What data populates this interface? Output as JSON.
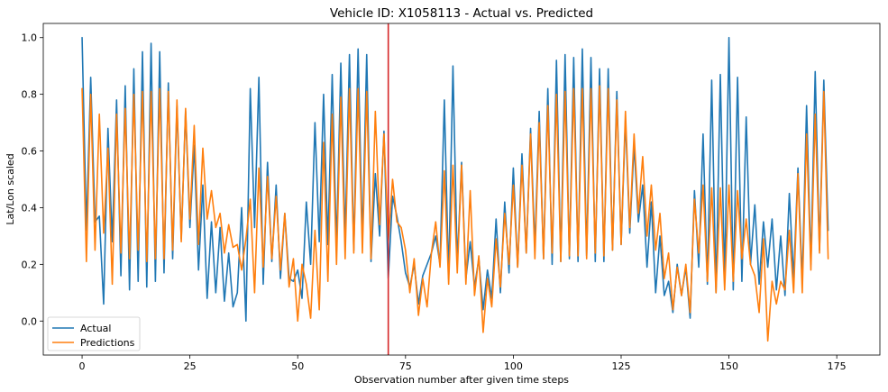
{
  "chart_data": {
    "type": "line",
    "title": "Vehicle ID: X1058113 - Actual vs. Predicted",
    "xlabel": "Observation number after given time steps",
    "ylabel": "Lat/Lon scaled",
    "xlim": [
      -9,
      185
    ],
    "ylim": [
      -0.12,
      1.05
    ],
    "x_ticks": [
      0,
      25,
      50,
      75,
      100,
      125,
      150,
      175
    ],
    "y_ticks": [
      0.0,
      0.2,
      0.4,
      0.6,
      0.8,
      1.0
    ],
    "grid": false,
    "legend_position": "lower-left",
    "vline": {
      "x": 71,
      "color": "#d62728"
    },
    "series": [
      {
        "name": "Actual",
        "color": "#1f77b4",
        "values": [
          1.0,
          0.32,
          0.86,
          0.35,
          0.37,
          0.06,
          0.68,
          0.28,
          0.78,
          0.16,
          0.83,
          0.11,
          0.89,
          0.14,
          0.95,
          0.12,
          0.98,
          0.14,
          0.95,
          0.17,
          0.84,
          0.22,
          0.76,
          0.29,
          0.74,
          0.33,
          0.62,
          0.18,
          0.48,
          0.08,
          0.35,
          0.1,
          0.33,
          0.07,
          0.24,
          0.05,
          0.1,
          0.4,
          0.0,
          0.82,
          0.33,
          0.86,
          0.13,
          0.56,
          0.21,
          0.48,
          0.15,
          0.38,
          0.15,
          0.14,
          0.18,
          0.08,
          0.42,
          0.2,
          0.7,
          0.28,
          0.8,
          0.27,
          0.87,
          0.26,
          0.91,
          0.29,
          0.94,
          0.25,
          0.96,
          0.28,
          0.94,
          0.21,
          0.52,
          0.3,
          0.67,
          0.15,
          0.44,
          0.37,
          0.28,
          0.17,
          0.12,
          0.2,
          0.06,
          0.16,
          0.2,
          0.24,
          0.3,
          0.2,
          0.78,
          0.15,
          0.9,
          0.2,
          0.56,
          0.15,
          0.28,
          0.12,
          0.22,
          0.04,
          0.18,
          0.08,
          0.36,
          0.1,
          0.42,
          0.17,
          0.54,
          0.19,
          0.59,
          0.24,
          0.68,
          0.26,
          0.74,
          0.22,
          0.82,
          0.2,
          0.92,
          0.21,
          0.94,
          0.22,
          0.93,
          0.21,
          0.96,
          0.23,
          0.93,
          0.21,
          0.89,
          0.21,
          0.89,
          0.25,
          0.81,
          0.27,
          0.71,
          0.31,
          0.62,
          0.35,
          0.48,
          0.19,
          0.42,
          0.1,
          0.3,
          0.09,
          0.14,
          0.03,
          0.2,
          0.09,
          0.19,
          0.01,
          0.46,
          0.19,
          0.66,
          0.13,
          0.85,
          0.1,
          0.87,
          0.14,
          1.0,
          0.11,
          0.86,
          0.14,
          0.72,
          0.2,
          0.41,
          0.13,
          0.35,
          0.19,
          0.36,
          0.11,
          0.3,
          0.09,
          0.45,
          0.15,
          0.54,
          0.14,
          0.76,
          0.2,
          0.88,
          0.25,
          0.85,
          0.32
        ]
      },
      {
        "name": "Predictions",
        "color": "#ff7f0e",
        "values": [
          0.82,
          0.21,
          0.8,
          0.25,
          0.73,
          0.31,
          0.61,
          0.13,
          0.73,
          0.24,
          0.75,
          0.22,
          0.8,
          0.25,
          0.81,
          0.21,
          0.81,
          0.22,
          0.82,
          0.22,
          0.81,
          0.25,
          0.78,
          0.28,
          0.75,
          0.36,
          0.69,
          0.27,
          0.61,
          0.36,
          0.46,
          0.33,
          0.38,
          0.24,
          0.34,
          0.26,
          0.27,
          0.18,
          0.29,
          0.43,
          0.1,
          0.54,
          0.19,
          0.51,
          0.22,
          0.44,
          0.18,
          0.38,
          0.12,
          0.22,
          0.0,
          0.2,
          0.13,
          0.01,
          0.32,
          0.04,
          0.63,
          0.14,
          0.73,
          0.2,
          0.79,
          0.22,
          0.82,
          0.24,
          0.82,
          0.24,
          0.81,
          0.22,
          0.74,
          0.34,
          0.66,
          0.28,
          0.5,
          0.35,
          0.33,
          0.25,
          0.1,
          0.22,
          0.02,
          0.15,
          0.05,
          0.24,
          0.35,
          0.19,
          0.53,
          0.13,
          0.55,
          0.17,
          0.55,
          0.13,
          0.46,
          0.09,
          0.23,
          -0.04,
          0.15,
          0.05,
          0.29,
          0.12,
          0.38,
          0.2,
          0.48,
          0.19,
          0.55,
          0.24,
          0.66,
          0.22,
          0.7,
          0.22,
          0.76,
          0.24,
          0.8,
          0.21,
          0.81,
          0.23,
          0.82,
          0.23,
          0.82,
          0.22,
          0.82,
          0.24,
          0.83,
          0.23,
          0.82,
          0.25,
          0.78,
          0.27,
          0.74,
          0.33,
          0.66,
          0.38,
          0.58,
          0.3,
          0.48,
          0.25,
          0.38,
          0.15,
          0.24,
          0.04,
          0.19,
          0.09,
          0.2,
          0.03,
          0.43,
          0.24,
          0.48,
          0.14,
          0.47,
          0.1,
          0.47,
          0.11,
          0.48,
          0.14,
          0.46,
          0.22,
          0.36,
          0.2,
          0.16,
          0.03,
          0.29,
          -0.07,
          0.14,
          0.06,
          0.14,
          0.11,
          0.32,
          0.1,
          0.52,
          0.1,
          0.66,
          0.18,
          0.73,
          0.24,
          0.81,
          0.22
        ]
      }
    ]
  }
}
